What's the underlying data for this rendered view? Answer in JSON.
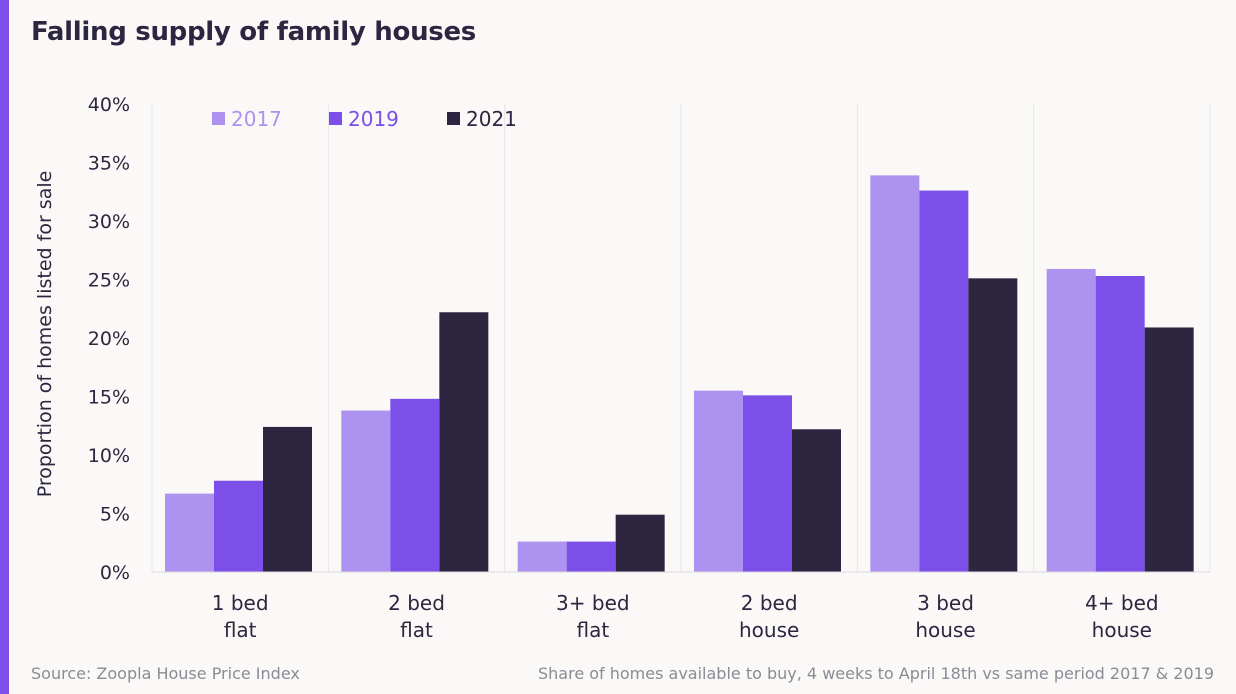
{
  "title": "Falling supply of family houses",
  "footer": {
    "source": "Source: Zoopla House Price Index",
    "note": "Share of homes available to buy, 4 weeks to April 18th vs same period 2017 & 2019"
  },
  "colors": {
    "accent": "#7b4fe8",
    "series_2017": "#ae92f0",
    "series_2019": "#7b4fe8",
    "series_2021": "#2e2640"
  },
  "chart_data": {
    "type": "bar",
    "title": "Falling supply of family houses",
    "xlabel": "",
    "ylabel": "Proportion of homes listed for sale",
    "ylim": [
      0,
      40
    ],
    "yticks": [
      0,
      5,
      10,
      15,
      20,
      25,
      30,
      35,
      40
    ],
    "ytick_labels": [
      "0%",
      "5%",
      "10%",
      "15%",
      "20%",
      "25%",
      "30%",
      "35%",
      "40%"
    ],
    "grid": "vertical separators between categories",
    "legend": "top-left",
    "categories": [
      [
        "1 bed",
        "flat"
      ],
      [
        "2 bed",
        "flat"
      ],
      [
        "3+ bed",
        "flat"
      ],
      [
        "2 bed",
        "house"
      ],
      [
        "3 bed",
        "house"
      ],
      [
        "4+ bed",
        "house"
      ]
    ],
    "series": [
      {
        "name": "2017",
        "color": "#ae92f0",
        "values": [
          6.7,
          13.8,
          2.6,
          15.5,
          33.9,
          25.9
        ]
      },
      {
        "name": "2019",
        "color": "#7b4fe8",
        "values": [
          7.8,
          14.8,
          2.6,
          15.1,
          32.6,
          25.3
        ]
      },
      {
        "name": "2021",
        "color": "#2e2640",
        "values": [
          12.4,
          22.2,
          4.9,
          12.2,
          25.1,
          20.9
        ]
      }
    ]
  }
}
